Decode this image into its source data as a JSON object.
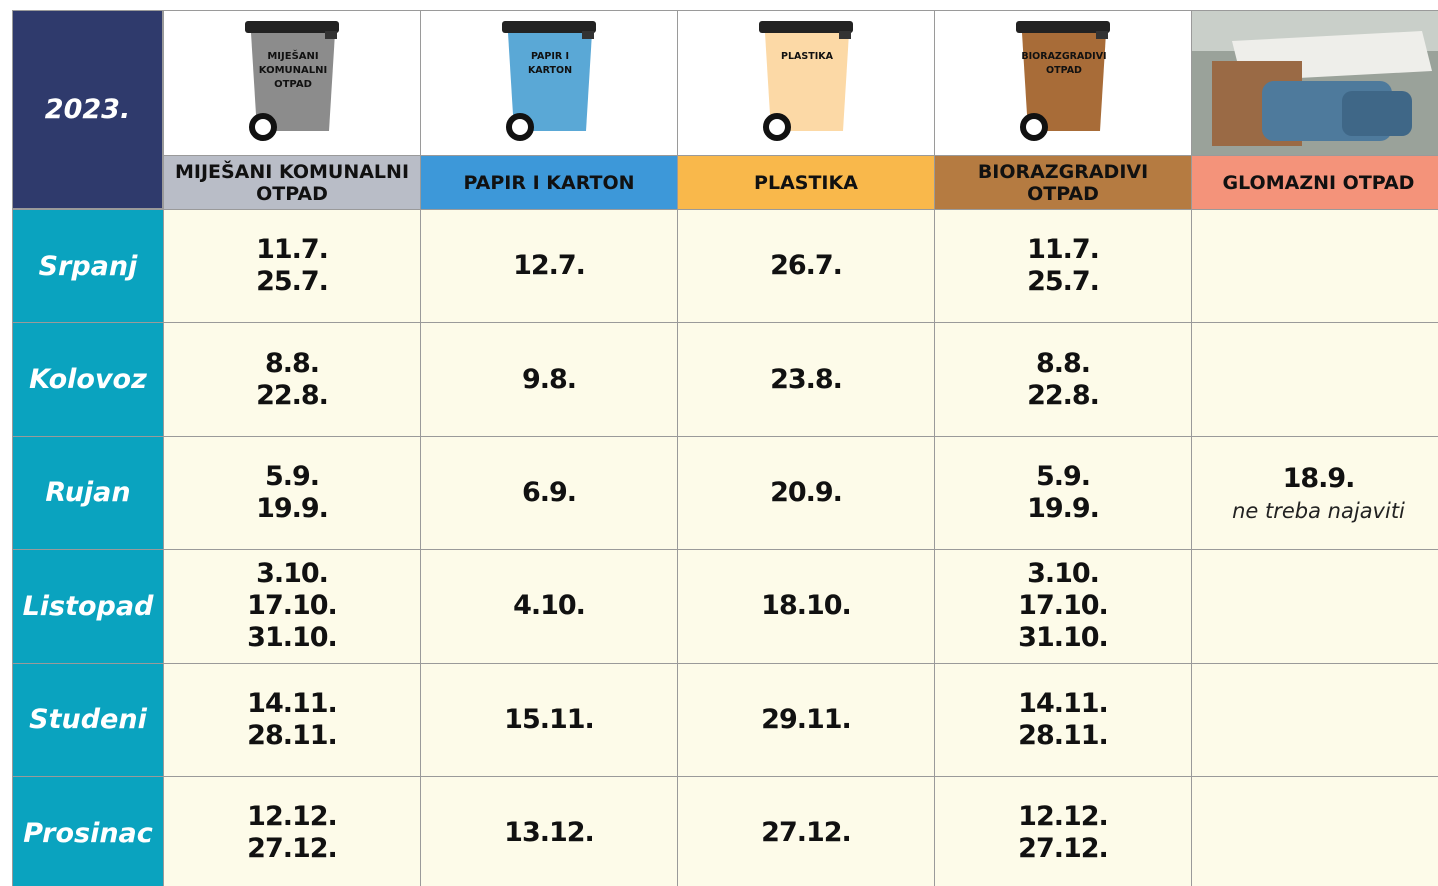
{
  "header": {
    "year": "2023.",
    "columns": [
      {
        "label": "MIJEŠANI KOMUNALNI OTPAD",
        "bin_label": [
          "MIJEŠANI",
          "KOMUNALNI",
          "OTPAD"
        ],
        "label_color": "#b9bdc7",
        "bin_color": "#8c8c8c"
      },
      {
        "label": "PAPIR I KARTON",
        "bin_label": [
          "PAPIR I",
          "KARTON"
        ],
        "label_color": "#3d98d9",
        "bin_color": "#5aa8d6"
      },
      {
        "label": "PLASTIKA",
        "bin_label": [
          "PLASTIKA"
        ],
        "label_color": "#f9b84b",
        "bin_color": "#fcd9a6"
      },
      {
        "label": "BIORAZGRADIVI OTPAD",
        "bin_label": [
          "BIORAZGRADIVI",
          "OTPAD"
        ],
        "label_color": "#b57b41",
        "bin_color": "#a86c38"
      },
      {
        "label": "GLOMAZNI OTPAD",
        "label_color": "#f4937a"
      }
    ]
  },
  "table": {
    "rows": [
      {
        "month": "Srpanj",
        "cells": [
          {
            "dates": [
              "11.7.",
              "25.7."
            ]
          },
          {
            "dates": [
              "12.7."
            ]
          },
          {
            "dates": [
              "26.7."
            ]
          },
          {
            "dates": [
              "11.7.",
              "25.7."
            ]
          },
          {
            "dates": []
          }
        ]
      },
      {
        "month": "Kolovoz",
        "cells": [
          {
            "dates": [
              "8.8.",
              "22.8."
            ]
          },
          {
            "dates": [
              "9.8."
            ]
          },
          {
            "dates": [
              "23.8."
            ]
          },
          {
            "dates": [
              "8.8.",
              "22.8."
            ]
          },
          {
            "dates": []
          }
        ]
      },
      {
        "month": "Rujan",
        "cells": [
          {
            "dates": [
              "5.9.",
              "19.9."
            ]
          },
          {
            "dates": [
              "6.9."
            ]
          },
          {
            "dates": [
              "20.9."
            ]
          },
          {
            "dates": [
              "5.9.",
              "19.9."
            ]
          },
          {
            "dates": [
              "18.9."
            ],
            "note": "ne treba najaviti"
          }
        ]
      },
      {
        "month": "Listopad",
        "cells": [
          {
            "dates": [
              "3.10.",
              "17.10.",
              "31.10."
            ]
          },
          {
            "dates": [
              "4.10."
            ]
          },
          {
            "dates": [
              "18.10."
            ]
          },
          {
            "dates": [
              "3.10.",
              "17.10.",
              "31.10."
            ]
          },
          {
            "dates": []
          }
        ]
      },
      {
        "month": "Studeni",
        "cells": [
          {
            "dates": [
              "14.11.",
              "28.11."
            ]
          },
          {
            "dates": [
              "15.11."
            ]
          },
          {
            "dates": [
              "29.11."
            ]
          },
          {
            "dates": [
              "14.11.",
              "28.11."
            ]
          },
          {
            "dates": []
          }
        ]
      },
      {
        "month": "Prosinac",
        "cells": [
          {
            "dates": [
              "12.12.",
              "27.12."
            ]
          },
          {
            "dates": [
              "13.12."
            ]
          },
          {
            "dates": [
              "27.12."
            ]
          },
          {
            "dates": [
              "12.12.",
              "27.12."
            ]
          },
          {
            "dates": []
          }
        ]
      }
    ]
  }
}
